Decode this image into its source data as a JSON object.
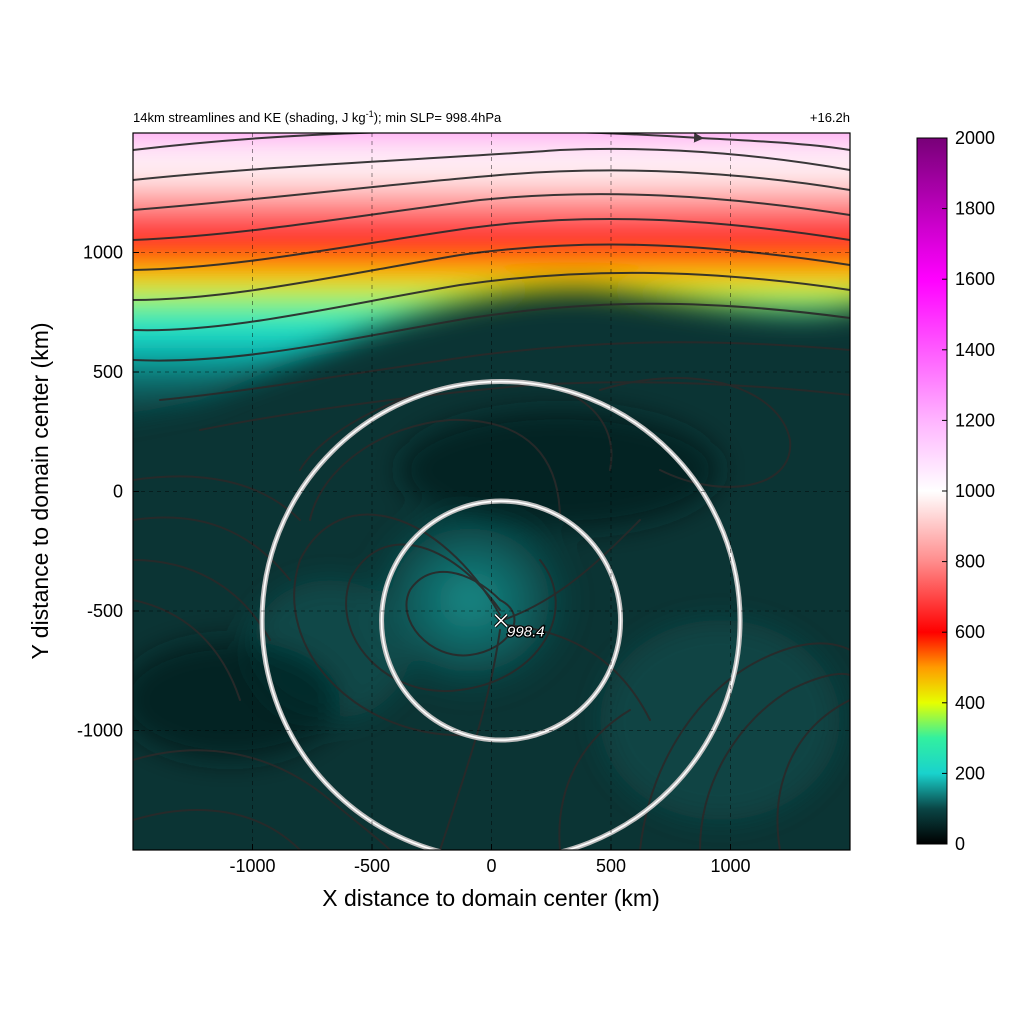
{
  "chart_data": {
    "type": "heatmap",
    "title": "14km streamlines and KE (shading, J kg",
    "title_superscript": "-1",
    "title_suffix": "); min SLP= 998.4hPa",
    "time_label": "+16.2h",
    "xlabel": "X distance to domain center (km)",
    "ylabel": "Y distance to domain center (km)",
    "xlim": [
      -1500,
      1500
    ],
    "ylim": [
      -1500,
      1500
    ],
    "x_ticks": [
      -1000,
      -500,
      0,
      500,
      1000
    ],
    "y_ticks": [
      -1000,
      -500,
      0,
      500,
      1000
    ],
    "x_tick_labels": [
      "-1000",
      "-500",
      "0",
      "500",
      "1000"
    ],
    "y_tick_labels": [
      "-1000",
      "-500",
      "0",
      "500",
      "1000"
    ],
    "grid": true,
    "colorbar": {
      "min": 0,
      "max": 2000,
      "ticks": [
        0,
        200,
        400,
        600,
        800,
        1000,
        1200,
        1400,
        1600,
        1800,
        2000
      ],
      "tick_labels": [
        "0",
        "200",
        "400",
        "600",
        "800",
        "1000",
        "1200",
        "1400",
        "1600",
        "1800",
        "2000"
      ],
      "stops": [
        {
          "value": 0,
          "color": "#000000"
        },
        {
          "value": 100,
          "color": "#0a4646"
        },
        {
          "value": 200,
          "color": "#19d2cd"
        },
        {
          "value": 300,
          "color": "#32f0a0"
        },
        {
          "value": 400,
          "color": "#e6ff00"
        },
        {
          "value": 500,
          "color": "#ff9b00"
        },
        {
          "value": 600,
          "color": "#ff0000"
        },
        {
          "value": 800,
          "color": "#ff8c8c"
        },
        {
          "value": 1000,
          "color": "#ffffff"
        },
        {
          "value": 1200,
          "color": "#ffb4ff"
        },
        {
          "value": 1600,
          "color": "#ff00ff"
        },
        {
          "value": 2000,
          "color": "#780078"
        }
      ]
    },
    "center_marker": {
      "x": 40,
      "y": -540,
      "label": "998.4"
    },
    "circles": [
      {
        "cx": 40,
        "cy": -540,
        "r": 500
      },
      {
        "cx": 40,
        "cy": -540,
        "r": 1000
      }
    ]
  }
}
